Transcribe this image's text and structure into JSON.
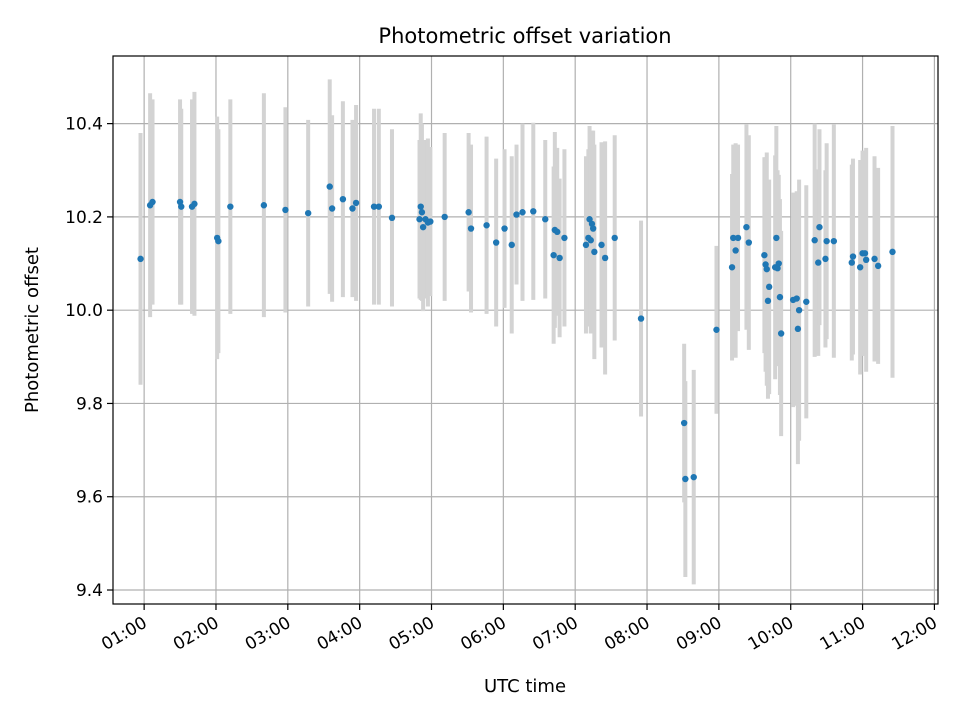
{
  "chart_data": {
    "type": "scatter",
    "title": "Photometric offset variation",
    "xlabel": "UTC time",
    "ylabel": "Photometric offset",
    "xlim": [
      "00:34",
      "12:03"
    ],
    "ylim": [
      9.37,
      10.545
    ],
    "xticks": [
      "01:00",
      "02:00",
      "03:00",
      "04:00",
      "05:00",
      "06:00",
      "07:00",
      "08:00",
      "09:00",
      "10:00",
      "11:00",
      "12:00"
    ],
    "yticks": [
      9.4,
      9.6,
      9.8,
      10.0,
      10.2,
      10.4
    ],
    "grid": true,
    "legend": "none",
    "point_color": "#1f77b4",
    "errorbar_color": "#d3d3d3",
    "series": [
      {
        "x": [
          "00:57",
          "01:05",
          "01:07",
          "01:30",
          "01:31",
          "01:40",
          "01:42",
          "02:01",
          "02:02",
          "02:12",
          "02:40",
          "02:58",
          "03:17",
          "03:35",
          "03:37",
          "03:46",
          "03:54",
          "03:57",
          "04:12",
          "04:16",
          "04:27",
          "04:50",
          "04:51",
          "04:52",
          "04:53",
          "04:55",
          "04:57",
          "04:59",
          "05:11",
          "05:31",
          "05:33",
          "05:46",
          "05:54",
          "06:01",
          "06:07",
          "06:11",
          "06:16",
          "06:25",
          "06:35",
          "06:42",
          "06:43",
          "06:45",
          "06:47",
          "06:51",
          "07:09",
          "07:11",
          "07:12",
          "07:13",
          "07:14",
          "07:15",
          "07:16",
          "07:22",
          "07:25",
          "07:33",
          "07:55",
          "08:31",
          "08:32",
          "08:39",
          "08:58",
          "09:11",
          "09:12",
          "09:14",
          "09:16",
          "09:23",
          "09:25",
          "09:38",
          "09:39",
          "09:40",
          "09:41",
          "09:42",
          "09:47",
          "09:48",
          "09:49",
          "09:50",
          "09:51",
          "09:52",
          "10:02",
          "10:05",
          "10:06",
          "10:07",
          "10:13",
          "10:20",
          "10:23",
          "10:24",
          "10:29",
          "10:30",
          "10:36",
          "10:51",
          "10:52",
          "10:58",
          "11:00",
          "11:02",
          "11:03",
          "11:10",
          "11:13",
          "11:25"
        ],
        "y": [
          10.11,
          10.225,
          10.232,
          10.232,
          10.222,
          10.222,
          10.228,
          10.155,
          10.148,
          10.222,
          10.225,
          10.215,
          10.208,
          10.265,
          10.218,
          10.238,
          10.218,
          10.23,
          10.222,
          10.222,
          10.198,
          10.195,
          10.222,
          10.21,
          10.178,
          10.195,
          10.188,
          10.19,
          10.2,
          10.21,
          10.175,
          10.182,
          10.145,
          10.175,
          10.14,
          10.205,
          10.21,
          10.212,
          10.195,
          10.118,
          10.172,
          10.168,
          10.112,
          10.155,
          10.14,
          10.155,
          10.195,
          10.15,
          10.185,
          10.175,
          10.125,
          10.14,
          10.112,
          10.155,
          9.982,
          9.758,
          9.638,
          9.642,
          9.958,
          10.092,
          10.155,
          10.128,
          10.155,
          10.178,
          10.145,
          10.118,
          10.098,
          10.088,
          10.02,
          10.05,
          10.092,
          10.155,
          10.09,
          10.1,
          10.028,
          9.95,
          10.022,
          10.025,
          9.96,
          10.0,
          10.018,
          10.15,
          10.102,
          10.178,
          10.11,
          10.148,
          10.148,
          10.102,
          10.115,
          10.092,
          10.122,
          10.122,
          10.108,
          10.11,
          10.095,
          10.125
        ],
        "yerr": [
          0.27,
          0.24,
          0.22,
          0.22,
          0.21,
          0.23,
          0.24,
          0.26,
          0.24,
          0.23,
          0.24,
          0.22,
          0.2,
          0.23,
          0.2,
          0.21,
          0.19,
          0.21,
          0.21,
          0.21,
          0.19,
          0.17,
          0.2,
          0.19,
          0.18,
          0.17,
          0.18,
          0.16,
          0.18,
          0.17,
          0.18,
          0.19,
          0.18,
          0.17,
          0.19,
          0.15,
          0.19,
          0.19,
          0.17,
          0.19,
          0.21,
          0.18,
          0.17,
          0.19,
          0.19,
          0.19,
          0.2,
          0.2,
          0.2,
          0.21,
          0.23,
          0.22,
          0.25,
          0.22,
          0.21,
          0.17,
          0.21,
          0.23,
          0.18,
          0.2,
          0.2,
          0.23,
          0.2,
          0.22,
          0.23,
          0.21,
          0.23,
          0.25,
          0.21,
          0.23,
          0.24,
          0.24,
          0.21,
          0.19,
          0.21,
          0.22,
          0.23,
          0.23,
          0.29,
          0.28,
          0.25,
          0.25,
          0.2,
          0.21,
          0.19,
          0.21,
          0.25,
          0.21,
          0.21,
          0.23,
          0.22,
          0.22,
          0.24,
          0.22,
          0.21,
          0.27
        ]
      }
    ]
  }
}
